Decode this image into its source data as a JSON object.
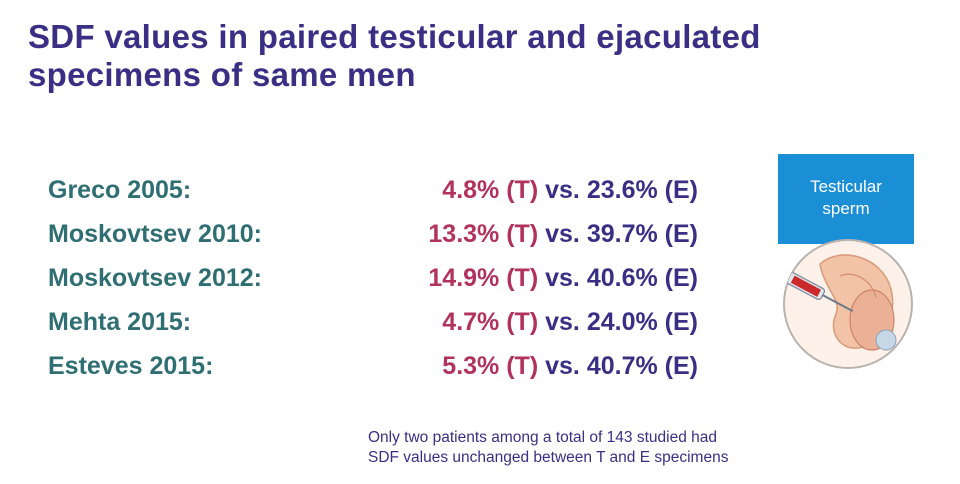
{
  "title": {
    "line1": "SDF values in paired testicular and ejaculated",
    "line2": "specimens of same men"
  },
  "rows": [
    {
      "study": "Greco 2005:",
      "t": "4.8% (T)",
      "vs": "vs.",
      "e": "23.6% (E)"
    },
    {
      "study": "Moskovtsev 2010:",
      "t": "13.3% (T)",
      "vs": "vs.",
      "e": "39.7% (E)"
    },
    {
      "study": "Moskovtsev 2012:",
      "t": "14.9% (T)",
      "vs": "vs.",
      "e": "40.6% (E)"
    },
    {
      "study": "Mehta 2015:",
      "t": "4.7% (T)",
      "vs": "vs.",
      "e": "24.0% (E)"
    },
    {
      "study": "Esteves 2015:",
      "t": "5.3% (T)",
      "vs": "vs.",
      "e": "40.7% (E)"
    }
  ],
  "figure": {
    "label_line1": "Testicular",
    "label_line2": "sperm"
  },
  "note": {
    "line1": "Only two patients among a total of 143 studied had",
    "line2": "SDF values unchanged between T and E specimens"
  },
  "colors": {
    "title": "#3b2f85",
    "study": "#2f6e72",
    "testicular_value": "#b2325e",
    "ejaculated_value": "#3b2f85",
    "label_box": "#1b8fd6"
  }
}
